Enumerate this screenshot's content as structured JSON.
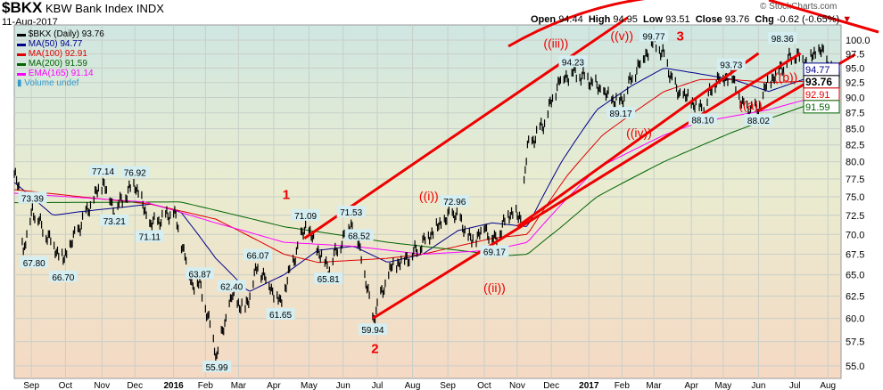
{
  "header": {
    "symbol": "$BKX",
    "name": "KBW Bank Index",
    "exchange": "INDX",
    "date": "11-Aug-2017",
    "copyright": "© StockCharts.com",
    "open_label": "Open",
    "open": "94.44",
    "high_label": "High",
    "high": "94.95",
    "low_label": "Low",
    "low": "93.51",
    "close_label": "Close",
    "close": "93.76",
    "chg_label": "Chg",
    "chg": "-0.62 (-0.65%)"
  },
  "legend": [
    {
      "text": "$BKX (Daily) 93.76",
      "color": "#000000"
    },
    {
      "text": "MA(50) 94.77",
      "color": "#00008b"
    },
    {
      "text": "MA(100) 92.91",
      "color": "#e00000"
    },
    {
      "text": "MA(200) 91.59",
      "color": "#006400"
    },
    {
      "text": "EMA(165) 91.14",
      "color": "#ff00ff"
    },
    {
      "text": "Volume undef",
      "color": "#3399cc"
    }
  ],
  "chart_data": {
    "type": "line",
    "scale": "log",
    "ylim": [
      54,
      101
    ],
    "yticks": [
      "55.0",
      "57.5",
      "60.0",
      "62.5",
      "65.0",
      "67.5",
      "70.0",
      "72.5",
      "75.0",
      "77.5",
      "80.0",
      "82.5",
      "85.0",
      "87.5",
      "90.0",
      "92.5",
      "95.0",
      "97.5",
      "100.0"
    ],
    "xlim": [
      "2015-08-17",
      "2017-08-11"
    ],
    "xticks": [
      {
        "date": "2015-09-01",
        "label": "Sep"
      },
      {
        "date": "2015-10-01",
        "label": "Oct"
      },
      {
        "date": "2015-11-02",
        "label": "Nov"
      },
      {
        "date": "2015-12-01",
        "label": "Dec"
      },
      {
        "date": "2016-01-04",
        "label": "2016",
        "bold": true
      },
      {
        "date": "2016-02-01",
        "label": "Feb"
      },
      {
        "date": "2016-03-01",
        "label": "Mar"
      },
      {
        "date": "2016-04-01",
        "label": "Apr"
      },
      {
        "date": "2016-05-02",
        "label": "May"
      },
      {
        "date": "2016-06-01",
        "label": "Jun"
      },
      {
        "date": "2016-07-01",
        "label": "Jul"
      },
      {
        "date": "2016-08-01",
        "label": "Aug"
      },
      {
        "date": "2016-09-01",
        "label": "Sep"
      },
      {
        "date": "2016-10-03",
        "label": "Oct"
      },
      {
        "date": "2016-11-01",
        "label": "Nov"
      },
      {
        "date": "2016-12-01",
        "label": "Dec"
      },
      {
        "date": "2017-01-03",
        "label": "2017",
        "bold": true
      },
      {
        "date": "2017-02-01",
        "label": "Feb"
      },
      {
        "date": "2017-03-01",
        "label": "Mar"
      },
      {
        "date": "2017-04-03",
        "label": "Apr"
      },
      {
        "date": "2017-05-01",
        "label": "May"
      },
      {
        "date": "2017-06-01",
        "label": "Jun"
      },
      {
        "date": "2017-07-03",
        "label": "Jul"
      },
      {
        "date": "2017-08-01",
        "label": "Aug"
      }
    ],
    "price": [
      [
        "2015-08-17",
        78.2
      ],
      [
        "2015-08-21",
        76
      ],
      [
        "2015-08-25",
        67.8
      ],
      [
        "2015-09-02",
        73.39
      ],
      [
        "2015-09-10",
        71
      ],
      [
        "2015-09-29",
        66.7
      ],
      [
        "2015-10-20",
        73
      ],
      [
        "2015-11-03",
        77.14
      ],
      [
        "2015-11-13",
        73.21
      ],
      [
        "2015-12-01",
        76.92
      ],
      [
        "2015-12-14",
        71.11
      ],
      [
        "2016-01-04",
        73
      ],
      [
        "2016-01-20",
        64
      ],
      [
        "2016-01-27",
        63.87
      ],
      [
        "2016-02-11",
        55.99
      ],
      [
        "2016-02-24",
        62.4
      ],
      [
        "2016-03-07",
        61
      ],
      [
        "2016-03-18",
        66.07
      ],
      [
        "2016-04-07",
        61.65
      ],
      [
        "2016-04-20",
        67.5
      ],
      [
        "2016-04-29",
        71.09
      ],
      [
        "2016-05-10",
        68
      ],
      [
        "2016-05-19",
        65.81
      ],
      [
        "2016-06-08",
        71.53
      ],
      [
        "2016-06-15",
        68.52
      ],
      [
        "2016-06-24",
        62
      ],
      [
        "2016-06-27",
        59.94
      ],
      [
        "2016-07-14",
        66
      ],
      [
        "2016-08-01",
        67.5
      ],
      [
        "2016-08-16",
        70
      ],
      [
        "2016-09-07",
        72.96
      ],
      [
        "2016-09-22",
        69
      ],
      [
        "2016-10-03",
        71
      ],
      [
        "2016-10-12",
        69.17
      ],
      [
        "2016-10-26",
        73
      ],
      [
        "2016-11-04",
        72
      ],
      [
        "2016-11-10",
        82
      ],
      [
        "2016-11-25",
        86
      ],
      [
        "2016-12-08",
        93
      ],
      [
        "2016-12-20",
        94.23
      ],
      [
        "2017-01-03",
        93
      ],
      [
        "2017-01-20",
        90
      ],
      [
        "2017-01-31",
        89.17
      ],
      [
        "2017-02-14",
        95
      ],
      [
        "2017-03-01",
        99.77
      ],
      [
        "2017-03-10",
        97
      ],
      [
        "2017-03-21",
        91
      ],
      [
        "2017-04-13",
        88.1
      ],
      [
        "2017-04-25",
        93
      ],
      [
        "2017-05-08",
        93.73
      ],
      [
        "2017-05-18",
        88.5
      ],
      [
        "2017-06-01",
        88.02
      ],
      [
        "2017-06-08",
        92
      ],
      [
        "2017-06-20",
        95
      ],
      [
        "2017-07-03",
        97.5
      ],
      [
        "2017-07-14",
        96
      ],
      [
        "2017-07-25",
        98.36
      ],
      [
        "2017-08-03",
        95
      ],
      [
        "2017-08-11",
        93.76
      ]
    ],
    "series": [
      {
        "name": "MA(50)",
        "color": "#00008b",
        "points": [
          [
            "2015-08-17",
            77
          ],
          [
            "2015-09-20",
            72.5
          ],
          [
            "2015-10-15",
            73
          ],
          [
            "2015-11-15",
            73.5
          ],
          [
            "2015-12-15",
            74
          ],
          [
            "2016-01-10",
            73
          ],
          [
            "2016-02-10",
            67
          ],
          [
            "2016-03-10",
            63
          ],
          [
            "2016-04-10",
            65
          ],
          [
            "2016-05-10",
            68
          ],
          [
            "2016-06-10",
            68.5
          ],
          [
            "2016-07-10",
            66.5
          ],
          [
            "2016-08-10",
            67.5
          ],
          [
            "2016-09-10",
            70.5
          ],
          [
            "2016-10-10",
            71.5
          ],
          [
            "2016-11-10",
            71
          ],
          [
            "2016-12-10",
            80
          ],
          [
            "2017-01-10",
            88
          ],
          [
            "2017-02-10",
            92
          ],
          [
            "2017-03-10",
            95
          ],
          [
            "2017-04-10",
            94
          ],
          [
            "2017-05-10",
            93
          ],
          [
            "2017-06-10",
            91
          ],
          [
            "2017-07-10",
            93
          ],
          [
            "2017-08-11",
            94.77
          ]
        ]
      },
      {
        "name": "MA(100)",
        "color": "#e00000",
        "points": [
          [
            "2015-08-17",
            76
          ],
          [
            "2015-10-15",
            75
          ],
          [
            "2015-12-15",
            74
          ],
          [
            "2016-02-10",
            72
          ],
          [
            "2016-04-10",
            67.5
          ],
          [
            "2016-05-10",
            66.5
          ],
          [
            "2016-07-10",
            67
          ],
          [
            "2016-08-10",
            67.5
          ],
          [
            "2016-10-10",
            69.5
          ],
          [
            "2016-11-10",
            70
          ],
          [
            "2016-12-15",
            78
          ],
          [
            "2017-01-15",
            84
          ],
          [
            "2017-03-10",
            91
          ],
          [
            "2017-04-10",
            93
          ],
          [
            "2017-05-10",
            93
          ],
          [
            "2017-06-10",
            92.5
          ],
          [
            "2017-08-11",
            92.91
          ]
        ]
      },
      {
        "name": "MA(200)",
        "color": "#006400",
        "points": [
          [
            "2015-08-17",
            74.2
          ],
          [
            "2016-01-10",
            74.3
          ],
          [
            "2016-04-10",
            71
          ],
          [
            "2016-07-10",
            69
          ],
          [
            "2016-09-10",
            68
          ],
          [
            "2016-10-20",
            67.3
          ],
          [
            "2016-11-10",
            67.5
          ],
          [
            "2016-12-10",
            71
          ],
          [
            "2017-01-10",
            75
          ],
          [
            "2017-03-10",
            80
          ],
          [
            "2017-05-10",
            84.5
          ],
          [
            "2017-07-10",
            88.5
          ],
          [
            "2017-08-11",
            91.59
          ]
        ]
      },
      {
        "name": "EMA(165)",
        "color": "#ff00ff",
        "points": [
          [
            "2015-08-17",
            75.5
          ],
          [
            "2015-12-10",
            74.3
          ],
          [
            "2016-02-10",
            71.5
          ],
          [
            "2016-04-10",
            69
          ],
          [
            "2016-06-10",
            68.5
          ],
          [
            "2016-08-10",
            67.5
          ],
          [
            "2016-10-10",
            68
          ],
          [
            "2016-11-10",
            69
          ],
          [
            "2016-12-10",
            74
          ],
          [
            "2017-01-10",
            79
          ],
          [
            "2017-03-10",
            84
          ],
          [
            "2017-04-10",
            86
          ],
          [
            "2017-06-10",
            88
          ],
          [
            "2017-08-11",
            91.14
          ]
        ]
      }
    ],
    "price_labels": [
      [
        "2015-08-25",
        67.8,
        "67.80",
        "below"
      ],
      [
        "2015-09-02",
        73.39,
        "73.39",
        "above"
      ],
      [
        "2015-09-29",
        66.7,
        "66.70",
        "below"
      ],
      [
        "2015-11-03",
        77.14,
        "77.14",
        "above"
      ],
      [
        "2015-11-13",
        73.21,
        "73.21",
        "below"
      ],
      [
        "2015-12-01",
        76.92,
        "76.92",
        "above"
      ],
      [
        "2015-12-14",
        71.11,
        "71.11",
        "below"
      ],
      [
        "2016-01-27",
        63.87,
        "63.87",
        "above"
      ],
      [
        "2016-02-11",
        55.99,
        "55.99",
        "below"
      ],
      [
        "2016-02-24",
        62.4,
        "62.40",
        "above"
      ],
      [
        "2016-03-18",
        66.07,
        "66.07",
        "above"
      ],
      [
        "2016-04-07",
        61.65,
        "61.65",
        "below"
      ],
      [
        "2016-04-29",
        71.09,
        "71.09",
        "above"
      ],
      [
        "2016-05-19",
        65.81,
        "65.81",
        "below"
      ],
      [
        "2016-06-08",
        71.53,
        "71.53",
        "above"
      ],
      [
        "2016-06-15",
        68.52,
        "68.52",
        "above"
      ],
      [
        "2016-06-27",
        59.94,
        "59.94",
        "below"
      ],
      [
        "2016-09-07",
        72.96,
        "72.96",
        "above"
      ],
      [
        "2016-10-12",
        69.17,
        "69.17",
        "below"
      ],
      [
        "2016-12-20",
        94.23,
        "94.23",
        "above"
      ],
      [
        "2017-01-31",
        89.17,
        "89.17",
        "below"
      ],
      [
        "2017-03-01",
        99.77,
        "99.77",
        "above"
      ],
      [
        "2017-04-13",
        88.1,
        "88.10",
        "below"
      ],
      [
        "2017-05-08",
        93.73,
        "93.73",
        "above"
      ],
      [
        "2017-06-01",
        88.02,
        "88.02",
        "below"
      ],
      [
        "2017-07-25",
        98.36,
        "98.36",
        "above"
      ]
    ],
    "last_values": [
      {
        "text": "94.77",
        "color": "#00008b",
        "value": 94.77
      },
      {
        "text": "93.76",
        "color": "#000000",
        "value": 93.76,
        "bold": true
      },
      {
        "text": "92.91",
        "color": "#e00000",
        "value": 92.91
      },
      {
        "text": "91.59",
        "color": "#006400",
        "value": 91.59
      }
    ],
    "trendlines": [
      [
        [
          "2016-06-27",
          60
        ],
        [
          "2017-07-08",
          97.6
        ]
      ],
      [
        [
          "2016-04-28",
          69.5
        ],
        [
          "2017-02-06",
          104.2
        ]
      ],
      [
        [
          "2016-11-01",
          71
        ],
        [
          "2017-06-01",
          97.6
        ]
      ],
      [
        [
          "2017-06-01",
          87.8
        ],
        [
          "2017-08-25",
          97.4
        ]
      ]
    ],
    "annotations": [
      [
        "2016-04-12",
        74,
        "1"
      ],
      [
        "2016-06-29",
        56.3,
        "2"
      ],
      [
        "2016-08-20",
        74.5,
        "((i))"
      ],
      [
        "2016-10-12",
        63,
        "((ii))"
      ],
      [
        "2016-12-05",
        95.8,
        "((iii))"
      ],
      [
        "2017-02-15",
        103,
        "((v))"
      ],
      [
        "2017-02-24",
        106,
        "3"
      ],
      [
        "2017-02-16",
        84.5,
        "((iv))"
      ],
      [
        "2017-05-25",
        85.5,
        "((a))"
      ],
      [
        "2017-07-28",
        99.3,
        "((b))"
      ]
    ]
  }
}
